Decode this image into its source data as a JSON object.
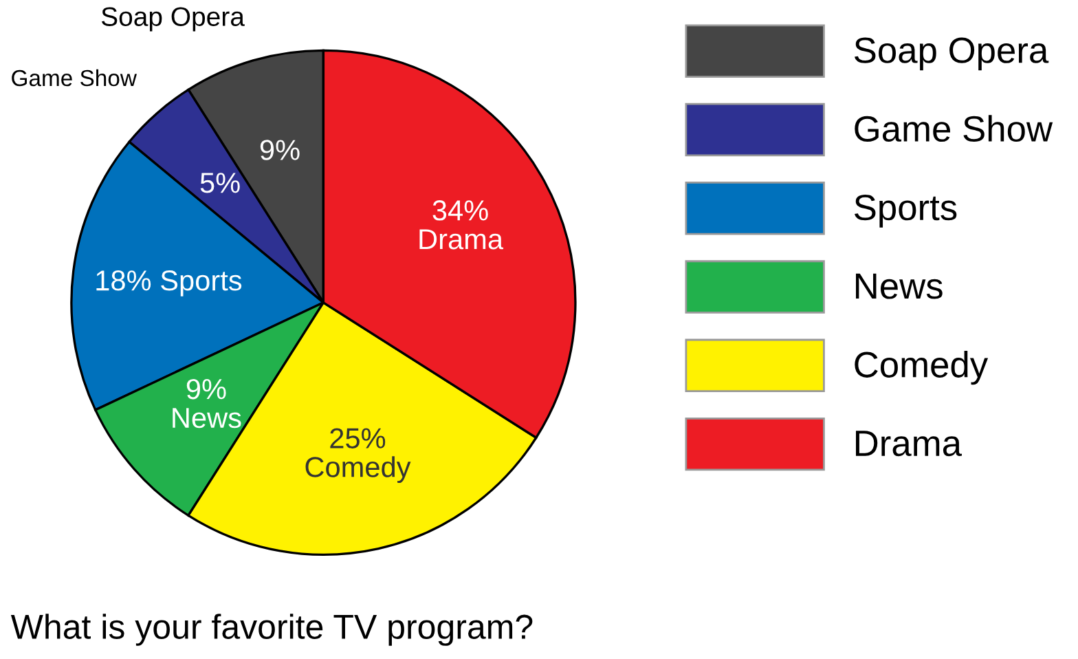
{
  "chart_data": {
    "type": "pie",
    "title": "What is your favorite TV program?",
    "categories": [
      "Soap Opera",
      "Game Show",
      "Sports",
      "News",
      "Comedy",
      "Drama"
    ],
    "values": [
      9,
      5,
      18,
      9,
      25,
      34
    ],
    "colors": [
      "#454545",
      "#2e3192",
      "#0071bc",
      "#22b14c",
      "#fff200",
      "#ed1c24"
    ],
    "value_labels": [
      "9%",
      "5%",
      "18% Sports",
      "9%\nNews",
      "25%\nComedy",
      "34%\nDrama"
    ],
    "annotations": [
      {
        "text": "Soap Opera",
        "x": "Soap Opera"
      },
      {
        "text": "Game Show",
        "x": "Game Show"
      }
    ],
    "legend": "right"
  }
}
